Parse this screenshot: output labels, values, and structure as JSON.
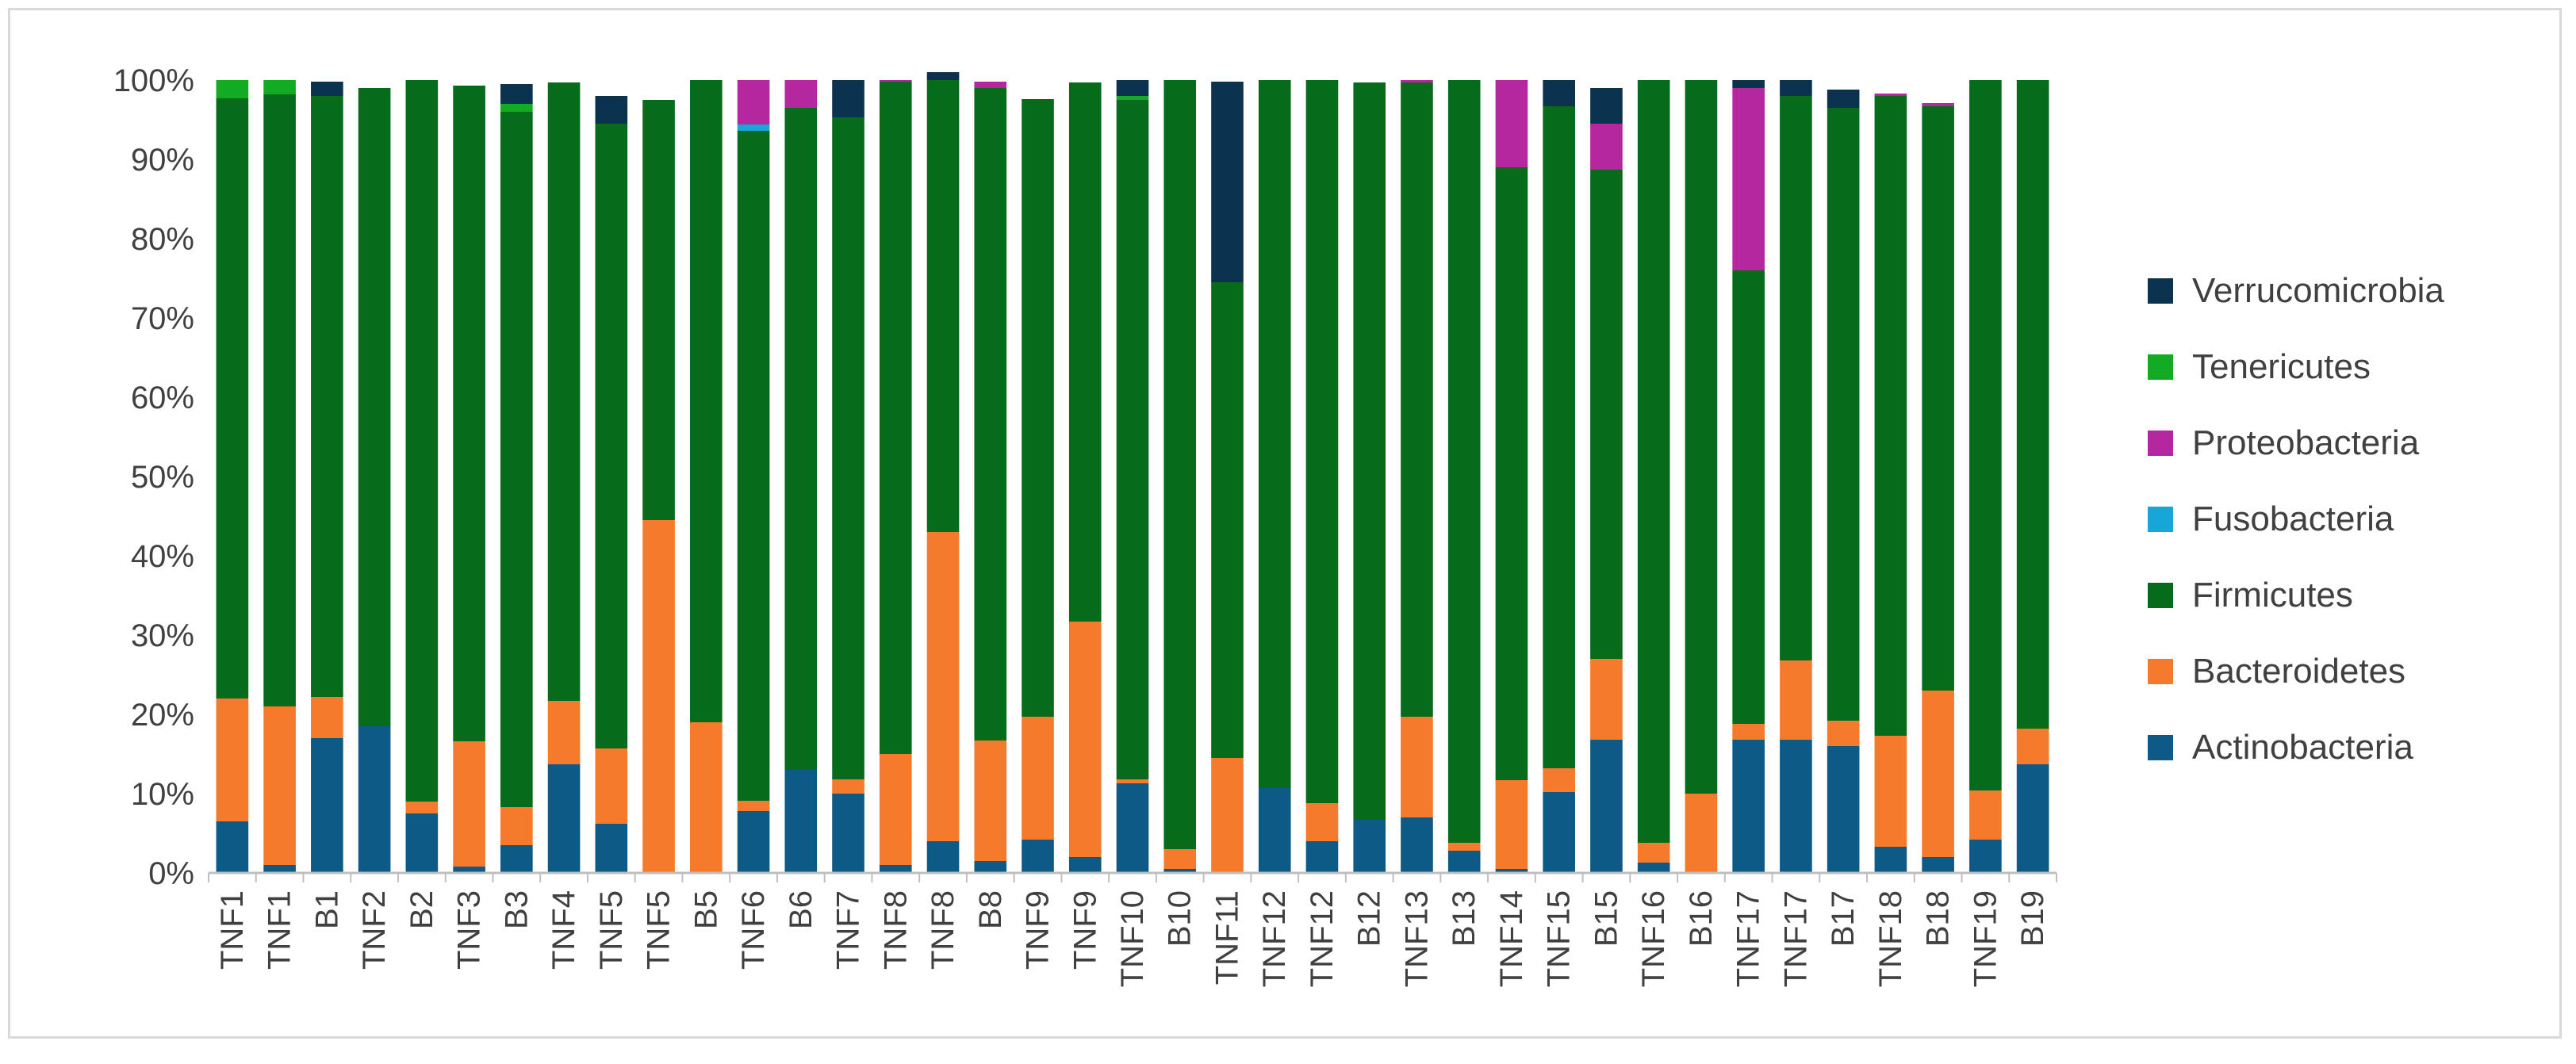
{
  "chart_data": {
    "type": "bar",
    "stacked": true,
    "title": "",
    "xlabel": "",
    "ylabel": "",
    "ylim": [
      0,
      1
    ],
    "yticks": [
      "0%",
      "10%",
      "20%",
      "30%",
      "40%",
      "50%",
      "60%",
      "70%",
      "80%",
      "90%",
      "100%"
    ],
    "grid": false,
    "legend_position": "right",
    "categories": [
      "TNF1",
      "TNF1",
      "B1",
      "TNF2",
      "B2",
      "TNF3",
      "B3",
      "TNF4",
      "TNF5",
      "TNF5",
      "B5",
      "TNF6",
      "B6",
      "TNF7",
      "TNF8",
      "TNF8",
      "B8",
      "TNF9",
      "TNF9",
      "TNF10",
      "B10",
      "TNF11",
      "TNF12",
      "TNF12",
      "B12",
      "TNF13",
      "B13",
      "TNF14",
      "TNF15",
      "B15",
      "TNF16",
      "B16",
      "TNF17",
      "TNF17",
      "B17",
      "TNF18",
      "B18",
      "TNF19",
      "B19"
    ],
    "series": [
      {
        "name": "Actinobacteria",
        "color": "#0e5a86",
        "values": [
          0.065,
          0.01,
          0.17,
          0.185,
          0.075,
          0.008,
          0.035,
          0.137,
          0.062,
          0.0,
          0.0,
          0.078,
          0.13,
          0.1,
          0.01,
          0.04,
          0.015,
          0.042,
          0.02,
          0.113,
          0.005,
          0.0,
          0.107,
          0.04,
          0.067,
          0.07,
          0.028,
          0.005,
          0.102,
          0.168,
          0.013,
          0.0,
          0.168,
          0.168,
          0.16,
          0.033,
          0.02,
          0.042,
          0.137
        ]
      },
      {
        "name": "Bacteroidetes",
        "color": "#f57a2c",
        "values": [
          0.155,
          0.2,
          0.052,
          0.0,
          0.015,
          0.158,
          0.048,
          0.08,
          0.095,
          0.445,
          0.19,
          0.013,
          0.0,
          0.018,
          0.14,
          0.39,
          0.152,
          0.155,
          0.297,
          0.005,
          0.025,
          0.145,
          0.0,
          0.048,
          0.0,
          0.127,
          0.01,
          0.112,
          0.03,
          0.102,
          0.025,
          0.1,
          0.02,
          0.1,
          0.032,
          0.14,
          0.21,
          0.062,
          0.045
        ]
      },
      {
        "name": "Firmicutes",
        "color": "#076b1c",
        "values": [
          0.757,
          0.772,
          0.758,
          0.805,
          0.91,
          0.827,
          0.877,
          0.78,
          0.788,
          0.53,
          0.81,
          0.845,
          0.835,
          0.835,
          0.848,
          0.57,
          0.823,
          0.779,
          0.68,
          0.857,
          0.97,
          0.6,
          0.893,
          0.912,
          0.93,
          0.8,
          0.962,
          0.773,
          0.835,
          0.617,
          0.962,
          0.9,
          0.572,
          0.712,
          0.773,
          0.807,
          0.737,
          0.896,
          0.818
        ]
      },
      {
        "name": "Fusobacteria",
        "color": "#16a6d8",
        "values": [
          0,
          0,
          0,
          0,
          0,
          0,
          0,
          0,
          0,
          0,
          0,
          0.008,
          0,
          0,
          0,
          0,
          0,
          0,
          0,
          0,
          0,
          0,
          0,
          0,
          0,
          0,
          0,
          0,
          0,
          0,
          0,
          0,
          0,
          0,
          0,
          0,
          0,
          0,
          0
        ]
      },
      {
        "name": "Proteobacteria",
        "color": "#b4279f",
        "values": [
          0,
          0,
          0,
          0,
          0,
          0,
          0,
          0,
          0,
          0,
          0,
          0.056,
          0.035,
          0,
          0.002,
          0,
          0.008,
          0,
          0,
          0,
          0,
          0,
          0,
          0,
          0,
          0.003,
          0,
          0.11,
          0,
          0.058,
          0,
          0,
          0.23,
          0,
          0,
          0.003,
          0.004,
          0,
          0
        ]
      },
      {
        "name": "Tenericutes",
        "color": "#13ab24",
        "values": [
          0.023,
          0.018,
          0,
          0,
          0,
          0,
          0.01,
          0,
          0,
          0,
          0,
          0,
          0,
          0,
          0,
          0,
          0,
          0,
          0,
          0.005,
          0,
          0,
          0,
          0,
          0,
          0,
          0,
          0,
          0,
          0,
          0,
          0,
          0,
          0,
          0,
          0,
          0,
          0,
          0
        ]
      },
      {
        "name": "Verrucomicrobia",
        "color": "#0b3350",
        "values": [
          0,
          0,
          0.018,
          0,
          0,
          0,
          0.025,
          0,
          0.035,
          0,
          0,
          0,
          0,
          0.047,
          0,
          0.01,
          0,
          0,
          0,
          0.02,
          0,
          0.253,
          0,
          0,
          0,
          0,
          0,
          0,
          0.033,
          0.045,
          0,
          0,
          0.01,
          0.02,
          0.023,
          0,
          0,
          0,
          0
        ]
      }
    ],
    "legend_order": [
      "Verrucomicrobia",
      "Tenericutes",
      "Proteobacteria",
      "Fusobacteria",
      "Firmicutes",
      "Bacteroidetes",
      "Actinobacteria"
    ]
  }
}
